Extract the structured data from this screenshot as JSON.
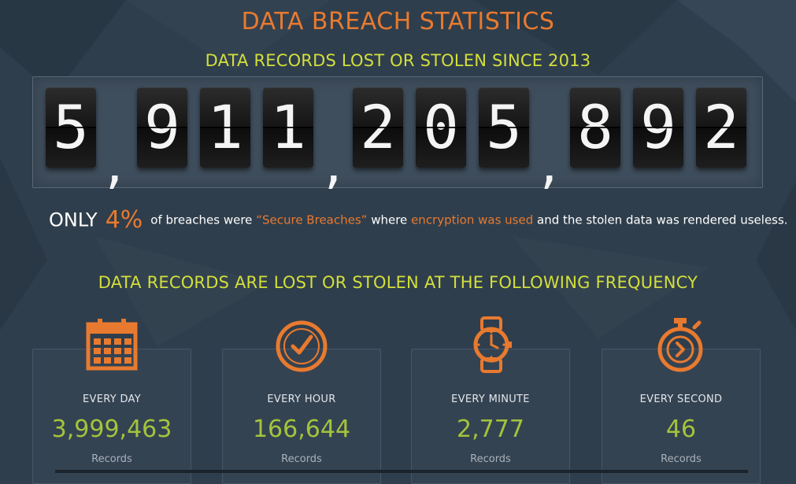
{
  "header": {
    "title": "DATA BREACH STATISTICS",
    "subtitle": "DATA RECORDS LOST OR STOLEN SINCE 2013"
  },
  "counter": {
    "d1": "5",
    "d2": "9",
    "d3": "1",
    "d4": "1",
    "d5": "2",
    "d6": "0",
    "d7": "5",
    "d8": "8",
    "d9": "9",
    "d10": "2",
    "separator": ","
  },
  "secure": {
    "only": "ONLY",
    "percent": "4%",
    "t1": "of breaches were",
    "h1": "“Secure Breaches”",
    "t2": "where",
    "h2": "encryption was used",
    "t3": "and the stolen data was rendered useless."
  },
  "frequency": {
    "title": "DATA RECORDS ARE LOST OR STOLEN AT THE FOLLOWING FREQUENCY",
    "day": {
      "label": "EVERY DAY",
      "value": "3,999,463",
      "unit": "Records",
      "icon": "calendar-icon"
    },
    "hour": {
      "label": "EVERY HOUR",
      "value": "166,644",
      "unit": "Records",
      "icon": "clock-icon"
    },
    "minute": {
      "label": "EVERY MINUTE",
      "value": "2,777",
      "unit": "Records",
      "icon": "watch-icon"
    },
    "second": {
      "label": "EVERY SECOND",
      "value": "46",
      "unit": "Records",
      "icon": "stopwatch-icon"
    }
  },
  "colors": {
    "background": "#2f3e4c",
    "accent_orange": "#e87a2f",
    "accent_yellow": "#d3df3b",
    "value_green": "#a4c43b"
  }
}
